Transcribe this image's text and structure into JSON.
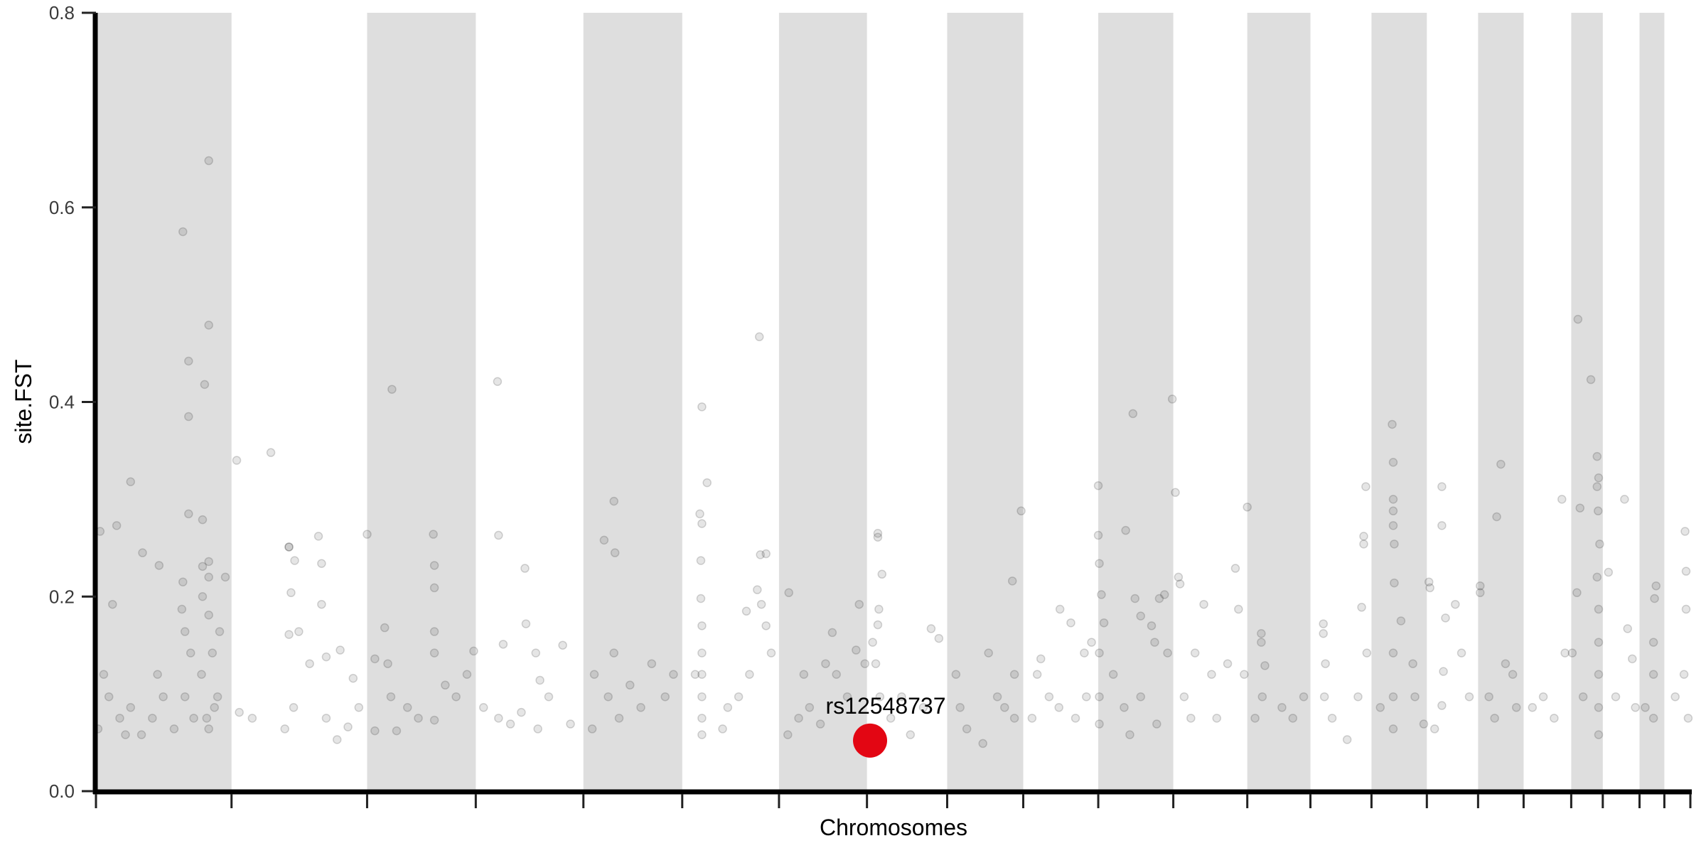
{
  "chart_data": {
    "type": "scatter",
    "title": "",
    "xlabel": "Chromosomes",
    "ylabel": "site.FST",
    "ylim": [
      0,
      0.8
    ],
    "yticks": [
      "0.0",
      "0.2",
      "0.4",
      "0.6",
      "0.8"
    ],
    "ytick_values": [
      0,
      0.2,
      0.4,
      0.6,
      0.8
    ],
    "grid": false,
    "alternating_chromosome_shading": true,
    "colors": {
      "band": "#dedede",
      "point": "#000000",
      "highlight": "#e30613",
      "axis": "#000000"
    },
    "chromosome_lengths_mb": [
      262,
      262,
      210,
      208,
      191,
      187,
      170,
      155,
      147,
      145,
      145,
      143,
      122,
      118,
      107,
      99,
      88,
      92,
      61,
      71,
      48,
      53
    ],
    "highlight": {
      "label": "rs12548737",
      "chr": 8,
      "pos_mb": 6,
      "fst": 0.052
    },
    "points_fields": [
      "chr",
      "pos_mb",
      "fst"
    ],
    "points": [
      [
        1,
        8,
        0.267
      ],
      [
        1,
        40,
        0.273
      ],
      [
        1,
        32,
        0.192
      ],
      [
        1,
        67,
        0.318
      ],
      [
        1,
        90,
        0.245
      ],
      [
        1,
        122,
        0.232
      ],
      [
        1,
        168,
        0.575
      ],
      [
        1,
        179,
        0.442
      ],
      [
        1,
        179,
        0.385
      ],
      [
        1,
        179,
        0.285
      ],
      [
        1,
        210,
        0.418
      ],
      [
        1,
        218,
        0.648
      ],
      [
        1,
        218,
        0.479
      ],
      [
        1,
        206,
        0.279
      ],
      [
        1,
        206,
        0.231
      ],
      [
        1,
        218,
        0.236
      ],
      [
        1,
        218,
        0.22
      ],
      [
        1,
        250,
        0.22
      ],
      [
        1,
        239,
        0.164
      ],
      [
        1,
        168,
        0.215
      ],
      [
        1,
        166,
        0.187
      ],
      [
        1,
        172,
        0.164
      ],
      [
        1,
        206,
        0.2
      ],
      [
        1,
        218,
        0.181
      ],
      [
        1,
        15,
        0.12
      ],
      [
        1,
        25,
        0.097
      ],
      [
        1,
        46,
        0.075
      ],
      [
        1,
        67,
        0.086
      ],
      [
        1,
        88,
        0.058
      ],
      [
        1,
        109,
        0.075
      ],
      [
        1,
        130,
        0.097
      ],
      [
        1,
        151,
        0.064
      ],
      [
        1,
        172,
        0.097
      ],
      [
        1,
        183,
        0.142
      ],
      [
        1,
        189,
        0.075
      ],
      [
        1,
        204,
        0.12
      ],
      [
        1,
        214,
        0.075
      ],
      [
        1,
        218,
        0.064
      ],
      [
        1,
        225,
        0.142
      ],
      [
        1,
        235,
        0.097
      ],
      [
        1,
        229,
        0.086
      ],
      [
        1,
        4,
        0.064
      ],
      [
        1,
        57,
        0.058
      ],
      [
        1,
        119,
        0.12
      ],
      [
        2,
        10,
        0.34
      ],
      [
        2,
        76,
        0.348
      ],
      [
        2,
        111,
        0.251
      ],
      [
        2,
        111,
        0.251
      ],
      [
        2,
        115,
        0.204
      ],
      [
        2,
        122,
        0.237
      ],
      [
        2,
        111,
        0.161
      ],
      [
        2,
        130,
        0.164
      ],
      [
        2,
        168,
        0.262
      ],
      [
        2,
        174,
        0.234
      ],
      [
        2,
        174,
        0.192
      ],
      [
        2,
        210,
        0.145
      ],
      [
        2,
        235,
        0.116
      ],
      [
        2,
        15,
        0.081
      ],
      [
        2,
        40,
        0.075
      ],
      [
        2,
        103,
        0.064
      ],
      [
        2,
        120,
        0.086
      ],
      [
        2,
        151,
        0.131
      ],
      [
        2,
        183,
        0.075
      ],
      [
        2,
        204,
        0.053
      ],
      [
        2,
        225,
        0.066
      ],
      [
        2,
        246,
        0.086
      ],
      [
        2,
        183,
        0.138
      ],
      [
        3,
        0,
        0.264
      ],
      [
        3,
        34,
        0.168
      ],
      [
        3,
        48,
        0.413
      ],
      [
        3,
        40,
        0.131
      ],
      [
        3,
        46,
        0.097
      ],
      [
        3,
        15,
        0.136
      ],
      [
        3,
        78,
        0.086
      ],
      [
        3,
        99,
        0.075
      ],
      [
        3,
        128,
        0.264
      ],
      [
        3,
        130,
        0.232
      ],
      [
        3,
        130,
        0.209
      ],
      [
        3,
        130,
        0.164
      ],
      [
        3,
        130,
        0.142
      ],
      [
        3,
        130,
        0.073
      ],
      [
        3,
        172,
        0.097
      ],
      [
        3,
        193,
        0.12
      ],
      [
        3,
        206,
        0.144
      ],
      [
        3,
        15,
        0.062
      ],
      [
        3,
        57,
        0.062
      ],
      [
        3,
        151,
        0.109
      ],
      [
        4,
        42,
        0.421
      ],
      [
        4,
        44,
        0.263
      ],
      [
        4,
        53,
        0.151
      ],
      [
        4,
        95,
        0.229
      ],
      [
        4,
        97,
        0.172
      ],
      [
        4,
        116,
        0.142
      ],
      [
        4,
        124,
        0.114
      ],
      [
        4,
        44,
        0.075
      ],
      [
        4,
        67,
        0.069
      ],
      [
        4,
        88,
        0.081
      ],
      [
        4,
        120,
        0.064
      ],
      [
        4,
        141,
        0.097
      ],
      [
        4,
        168,
        0.15
      ],
      [
        4,
        183,
        0.069
      ],
      [
        4,
        15,
        0.086
      ],
      [
        5,
        59,
        0.298
      ],
      [
        5,
        40,
        0.258
      ],
      [
        5,
        61,
        0.245
      ],
      [
        5,
        21,
        0.12
      ],
      [
        5,
        48,
        0.097
      ],
      [
        5,
        59,
        0.142
      ],
      [
        5,
        69,
        0.075
      ],
      [
        5,
        90,
        0.109
      ],
      [
        5,
        111,
        0.086
      ],
      [
        5,
        132,
        0.131
      ],
      [
        5,
        158,
        0.097
      ],
      [
        5,
        174,
        0.12
      ],
      [
        5,
        17,
        0.064
      ],
      [
        6,
        38,
        0.395
      ],
      [
        6,
        48,
        0.317
      ],
      [
        6,
        34,
        0.285
      ],
      [
        6,
        38,
        0.275
      ],
      [
        6,
        36,
        0.237
      ],
      [
        6,
        36,
        0.198
      ],
      [
        6,
        38,
        0.17
      ],
      [
        6,
        38,
        0.142
      ],
      [
        6,
        38,
        0.12
      ],
      [
        6,
        38,
        0.097
      ],
      [
        6,
        38,
        0.075
      ],
      [
        6,
        38,
        0.058
      ],
      [
        6,
        25,
        0.12
      ],
      [
        6,
        78,
        0.064
      ],
      [
        6,
        124,
        0.185
      ],
      [
        6,
        149,
        0.467
      ],
      [
        6,
        151,
        0.243
      ],
      [
        6,
        162,
        0.244
      ],
      [
        6,
        153,
        0.192
      ],
      [
        6,
        162,
        0.17
      ],
      [
        6,
        172,
        0.142
      ],
      [
        6,
        109,
        0.097
      ],
      [
        6,
        130,
        0.12
      ],
      [
        6,
        88,
        0.086
      ],
      [
        6,
        145,
        0.207
      ],
      [
        7,
        48,
        0.12
      ],
      [
        7,
        59,
        0.086
      ],
      [
        7,
        90,
        0.131
      ],
      [
        7,
        111,
        0.12
      ],
      [
        7,
        132,
        0.097
      ],
      [
        7,
        103,
        0.163
      ],
      [
        7,
        155,
        0.192
      ],
      [
        7,
        19,
        0.204
      ],
      [
        7,
        38,
        0.075
      ],
      [
        7,
        17,
        0.058
      ],
      [
        7,
        80,
        0.069
      ],
      [
        7,
        149,
        0.145
      ],
      [
        7,
        166,
        0.131
      ],
      [
        8,
        21,
        0.265
      ],
      [
        8,
        21,
        0.261
      ],
      [
        8,
        29,
        0.223
      ],
      [
        8,
        23,
        0.187
      ],
      [
        8,
        21,
        0.171
      ],
      [
        8,
        17,
        0.131
      ],
      [
        8,
        25,
        0.097
      ],
      [
        8,
        46,
        0.075
      ],
      [
        8,
        84,
        0.058
      ],
      [
        8,
        124,
        0.167
      ],
      [
        8,
        139,
        0.157
      ],
      [
        8,
        109,
        0.086
      ],
      [
        8,
        67,
        0.097
      ],
      [
        8,
        11,
        0.153
      ],
      [
        9,
        17,
        0.12
      ],
      [
        9,
        25,
        0.086
      ],
      [
        9,
        38,
        0.064
      ],
      [
        9,
        69,
        0.049
      ],
      [
        9,
        97,
        0.097
      ],
      [
        9,
        126,
        0.216
      ],
      [
        9,
        130,
        0.075
      ],
      [
        9,
        130,
        0.12
      ],
      [
        9,
        143,
        0.288
      ],
      [
        9,
        80,
        0.142
      ],
      [
        9,
        111,
        0.086
      ],
      [
        10,
        27,
        0.12
      ],
      [
        10,
        34,
        0.136
      ],
      [
        10,
        50,
        0.097
      ],
      [
        10,
        71,
        0.187
      ],
      [
        10,
        92,
        0.173
      ],
      [
        10,
        69,
        0.086
      ],
      [
        10,
        101,
        0.075
      ],
      [
        10,
        118,
        0.142
      ],
      [
        10,
        132,
        0.153
      ],
      [
        10,
        17,
        0.075
      ],
      [
        10,
        122,
        0.097
      ],
      [
        11,
        0,
        0.314
      ],
      [
        11,
        0,
        0.263
      ],
      [
        11,
        2,
        0.234
      ],
      [
        11,
        6,
        0.202
      ],
      [
        11,
        11,
        0.173
      ],
      [
        11,
        2,
        0.142
      ],
      [
        11,
        2,
        0.097
      ],
      [
        11,
        2,
        0.069
      ],
      [
        11,
        53,
        0.268
      ],
      [
        11,
        67,
        0.388
      ],
      [
        11,
        71,
        0.198
      ],
      [
        11,
        82,
        0.18
      ],
      [
        11,
        103,
        0.17
      ],
      [
        11,
        118,
        0.198
      ],
      [
        11,
        128,
        0.202
      ],
      [
        11,
        143,
        0.403
      ],
      [
        11,
        134,
        0.142
      ],
      [
        11,
        109,
        0.153
      ],
      [
        11,
        29,
        0.12
      ],
      [
        11,
        50,
        0.086
      ],
      [
        11,
        82,
        0.097
      ],
      [
        11,
        113,
        0.069
      ],
      [
        11,
        61,
        0.058
      ],
      [
        12,
        4,
        0.307
      ],
      [
        12,
        10,
        0.22
      ],
      [
        12,
        13,
        0.213
      ],
      [
        12,
        59,
        0.192
      ],
      [
        12,
        42,
        0.142
      ],
      [
        12,
        21,
        0.097
      ],
      [
        12,
        74,
        0.12
      ],
      [
        12,
        105,
        0.131
      ],
      [
        12,
        120,
        0.229
      ],
      [
        12,
        126,
        0.187
      ],
      [
        12,
        137,
        0.12
      ],
      [
        12,
        84,
        0.075
      ],
      [
        12,
        34,
        0.075
      ],
      [
        13,
        0,
        0.292
      ],
      [
        13,
        27,
        0.162
      ],
      [
        13,
        27,
        0.153
      ],
      [
        13,
        34,
        0.129
      ],
      [
        13,
        29,
        0.097
      ],
      [
        13,
        15,
        0.075
      ],
      [
        13,
        67,
        0.086
      ],
      [
        13,
        88,
        0.075
      ],
      [
        13,
        109,
        0.097
      ],
      [
        14,
        25,
        0.172
      ],
      [
        14,
        25,
        0.162
      ],
      [
        14,
        29,
        0.131
      ],
      [
        14,
        27,
        0.097
      ],
      [
        14,
        42,
        0.075
      ],
      [
        14,
        71,
        0.053
      ],
      [
        14,
        99,
        0.189
      ],
      [
        14,
        103,
        0.262
      ],
      [
        14,
        103,
        0.254
      ],
      [
        14,
        107,
        0.313
      ],
      [
        14,
        109,
        0.142
      ],
      [
        14,
        92,
        0.097
      ],
      [
        15,
        40,
        0.377
      ],
      [
        15,
        42,
        0.338
      ],
      [
        15,
        42,
        0.3
      ],
      [
        15,
        42,
        0.288
      ],
      [
        15,
        42,
        0.273
      ],
      [
        15,
        44,
        0.254
      ],
      [
        15,
        44,
        0.214
      ],
      [
        15,
        42,
        0.142
      ],
      [
        15,
        42,
        0.097
      ],
      [
        15,
        42,
        0.064
      ],
      [
        15,
        57,
        0.175
      ],
      [
        15,
        80,
        0.131
      ],
      [
        15,
        84,
        0.097
      ],
      [
        15,
        17,
        0.086
      ],
      [
        15,
        101,
        0.069
      ],
      [
        16,
        4,
        0.215
      ],
      [
        16,
        6,
        0.209
      ],
      [
        16,
        29,
        0.313
      ],
      [
        16,
        29,
        0.273
      ],
      [
        16,
        36,
        0.178
      ],
      [
        16,
        32,
        0.123
      ],
      [
        16,
        29,
        0.088
      ],
      [
        16,
        55,
        0.192
      ],
      [
        16,
        67,
        0.142
      ],
      [
        16,
        82,
        0.097
      ],
      [
        16,
        15,
        0.064
      ],
      [
        17,
        4,
        0.211
      ],
      [
        17,
        4,
        0.204
      ],
      [
        17,
        44,
        0.336
      ],
      [
        17,
        36,
        0.282
      ],
      [
        17,
        53,
        0.131
      ],
      [
        17,
        67,
        0.12
      ],
      [
        17,
        21,
        0.097
      ],
      [
        17,
        74,
        0.086
      ],
      [
        17,
        32,
        0.075
      ],
      [
        18,
        17,
        0.086
      ],
      [
        18,
        38,
        0.097
      ],
      [
        18,
        59,
        0.075
      ],
      [
        18,
        74,
        0.3
      ],
      [
        18,
        80,
        0.142
      ],
      [
        19,
        13,
        0.485
      ],
      [
        19,
        38,
        0.423
      ],
      [
        19,
        50,
        0.344
      ],
      [
        19,
        53,
        0.322
      ],
      [
        19,
        50,
        0.313
      ],
      [
        19,
        52,
        0.288
      ],
      [
        19,
        55,
        0.254
      ],
      [
        19,
        50,
        0.22
      ],
      [
        19,
        53,
        0.187
      ],
      [
        19,
        53,
        0.153
      ],
      [
        19,
        53,
        0.12
      ],
      [
        19,
        53,
        0.086
      ],
      [
        19,
        53,
        0.058
      ],
      [
        19,
        17,
        0.291
      ],
      [
        19,
        11,
        0.204
      ],
      [
        19,
        2,
        0.142
      ],
      [
        19,
        23,
        0.097
      ],
      [
        20,
        11,
        0.225
      ],
      [
        20,
        42,
        0.3
      ],
      [
        20,
        48,
        0.167
      ],
      [
        20,
        57,
        0.136
      ],
      [
        20,
        25,
        0.097
      ],
      [
        20,
        63,
        0.086
      ],
      [
        21,
        32,
        0.211
      ],
      [
        21,
        29,
        0.198
      ],
      [
        21,
        27,
        0.153
      ],
      [
        21,
        27,
        0.12
      ],
      [
        21,
        27,
        0.075
      ],
      [
        21,
        11,
        0.086
      ],
      [
        22,
        40,
        0.267
      ],
      [
        22,
        42,
        0.226
      ],
      [
        22,
        42,
        0.187
      ],
      [
        22,
        38,
        0.12
      ],
      [
        22,
        46,
        0.075
      ],
      [
        22,
        21,
        0.097
      ]
    ]
  }
}
